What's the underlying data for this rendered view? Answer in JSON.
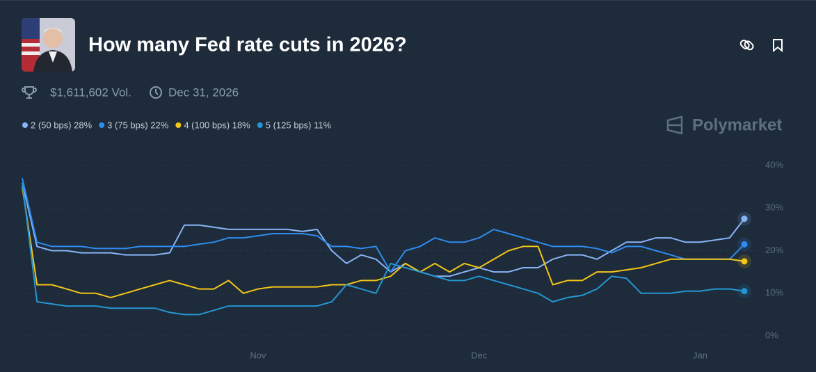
{
  "header": {
    "title": "How many Fed rate cuts in 2026?",
    "volume": "$1,611,602 Vol.",
    "end_date": "Dec 31, 2026",
    "brand": "Polymarket"
  },
  "chart_data": {
    "type": "line",
    "categories": [
      null,
      null,
      null,
      null,
      null,
      null,
      null,
      null,
      null,
      null,
      null,
      null,
      null,
      null,
      null,
      null,
      "Nov",
      null,
      null,
      null,
      null,
      null,
      null,
      null,
      null,
      null,
      null,
      null,
      null,
      null,
      null,
      "Dec",
      null,
      null,
      null,
      null,
      null,
      null,
      null,
      null,
      null,
      null,
      null,
      null,
      null,
      null,
      "Jan",
      null,
      null,
      null
    ],
    "series": [
      {
        "name": "2 (50 bps) 28%",
        "color": "#8ab4f8",
        "values": [
          36,
          21,
          20,
          20,
          19.5,
          19.5,
          19.5,
          19,
          19,
          19,
          19.5,
          26,
          26,
          25.5,
          25,
          25,
          25,
          25,
          25,
          24.5,
          25,
          20,
          17,
          19,
          18,
          15,
          17,
          15,
          14,
          14,
          15,
          16,
          15,
          15,
          16,
          16,
          18,
          19,
          19,
          18,
          20,
          22,
          22,
          23,
          23,
          22,
          22,
          22.5,
          23,
          27.5
        ]
      },
      {
        "name": "3 (75 bps) 22%",
        "color": "#2f8cf0",
        "values": [
          37,
          22,
          21,
          21,
          21,
          20.5,
          20.5,
          20.5,
          21,
          21,
          21,
          21,
          21.5,
          22,
          23,
          23,
          23.5,
          24,
          24,
          24,
          23.5,
          21,
          21,
          20.5,
          21,
          15,
          20,
          21,
          23,
          22,
          22,
          23,
          25,
          24,
          23,
          22,
          21,
          21,
          21,
          20.5,
          19.5,
          21,
          21,
          20,
          19,
          18,
          18,
          18,
          18,
          21.5
        ]
      },
      {
        "name": "4 (100 bps) 18%",
        "color": "#f5c518",
        "values": [
          35,
          12,
          12,
          11,
          10,
          10,
          9,
          10,
          11,
          12,
          13,
          12,
          11,
          11,
          13,
          10,
          11,
          11.5,
          11.5,
          11.5,
          11.5,
          12,
          12,
          13,
          13,
          14,
          17,
          15,
          17,
          15,
          17,
          16,
          18,
          20,
          21,
          21,
          12,
          13,
          13,
          15,
          15,
          15.5,
          16,
          17,
          18,
          18,
          18,
          18,
          18,
          17.5
        ]
      },
      {
        "name": "5 (125 bps) 11%",
        "color": "#2596d4",
        "values": [
          36,
          8,
          7.5,
          7,
          7,
          7,
          6.5,
          6.5,
          6.5,
          6.5,
          5.5,
          5,
          5,
          6,
          7,
          7,
          7,
          7,
          7,
          7,
          7,
          8,
          12,
          11,
          10,
          17,
          16,
          15,
          14,
          13,
          13,
          14,
          13,
          12,
          11,
          10,
          8,
          9,
          9.5,
          11,
          14,
          13.5,
          10,
          10,
          10,
          10.5,
          10.5,
          11,
          11,
          10.5
        ]
      }
    ],
    "ylim": [
      0,
      40
    ],
    "yticks": [
      {
        "value": 0,
        "label": "0%"
      },
      {
        "value": 10,
        "label": "10%"
      },
      {
        "value": 20,
        "label": "20%"
      },
      {
        "value": 30,
        "label": "30%"
      },
      {
        "value": 40,
        "label": "40%"
      }
    ],
    "grid": true
  }
}
